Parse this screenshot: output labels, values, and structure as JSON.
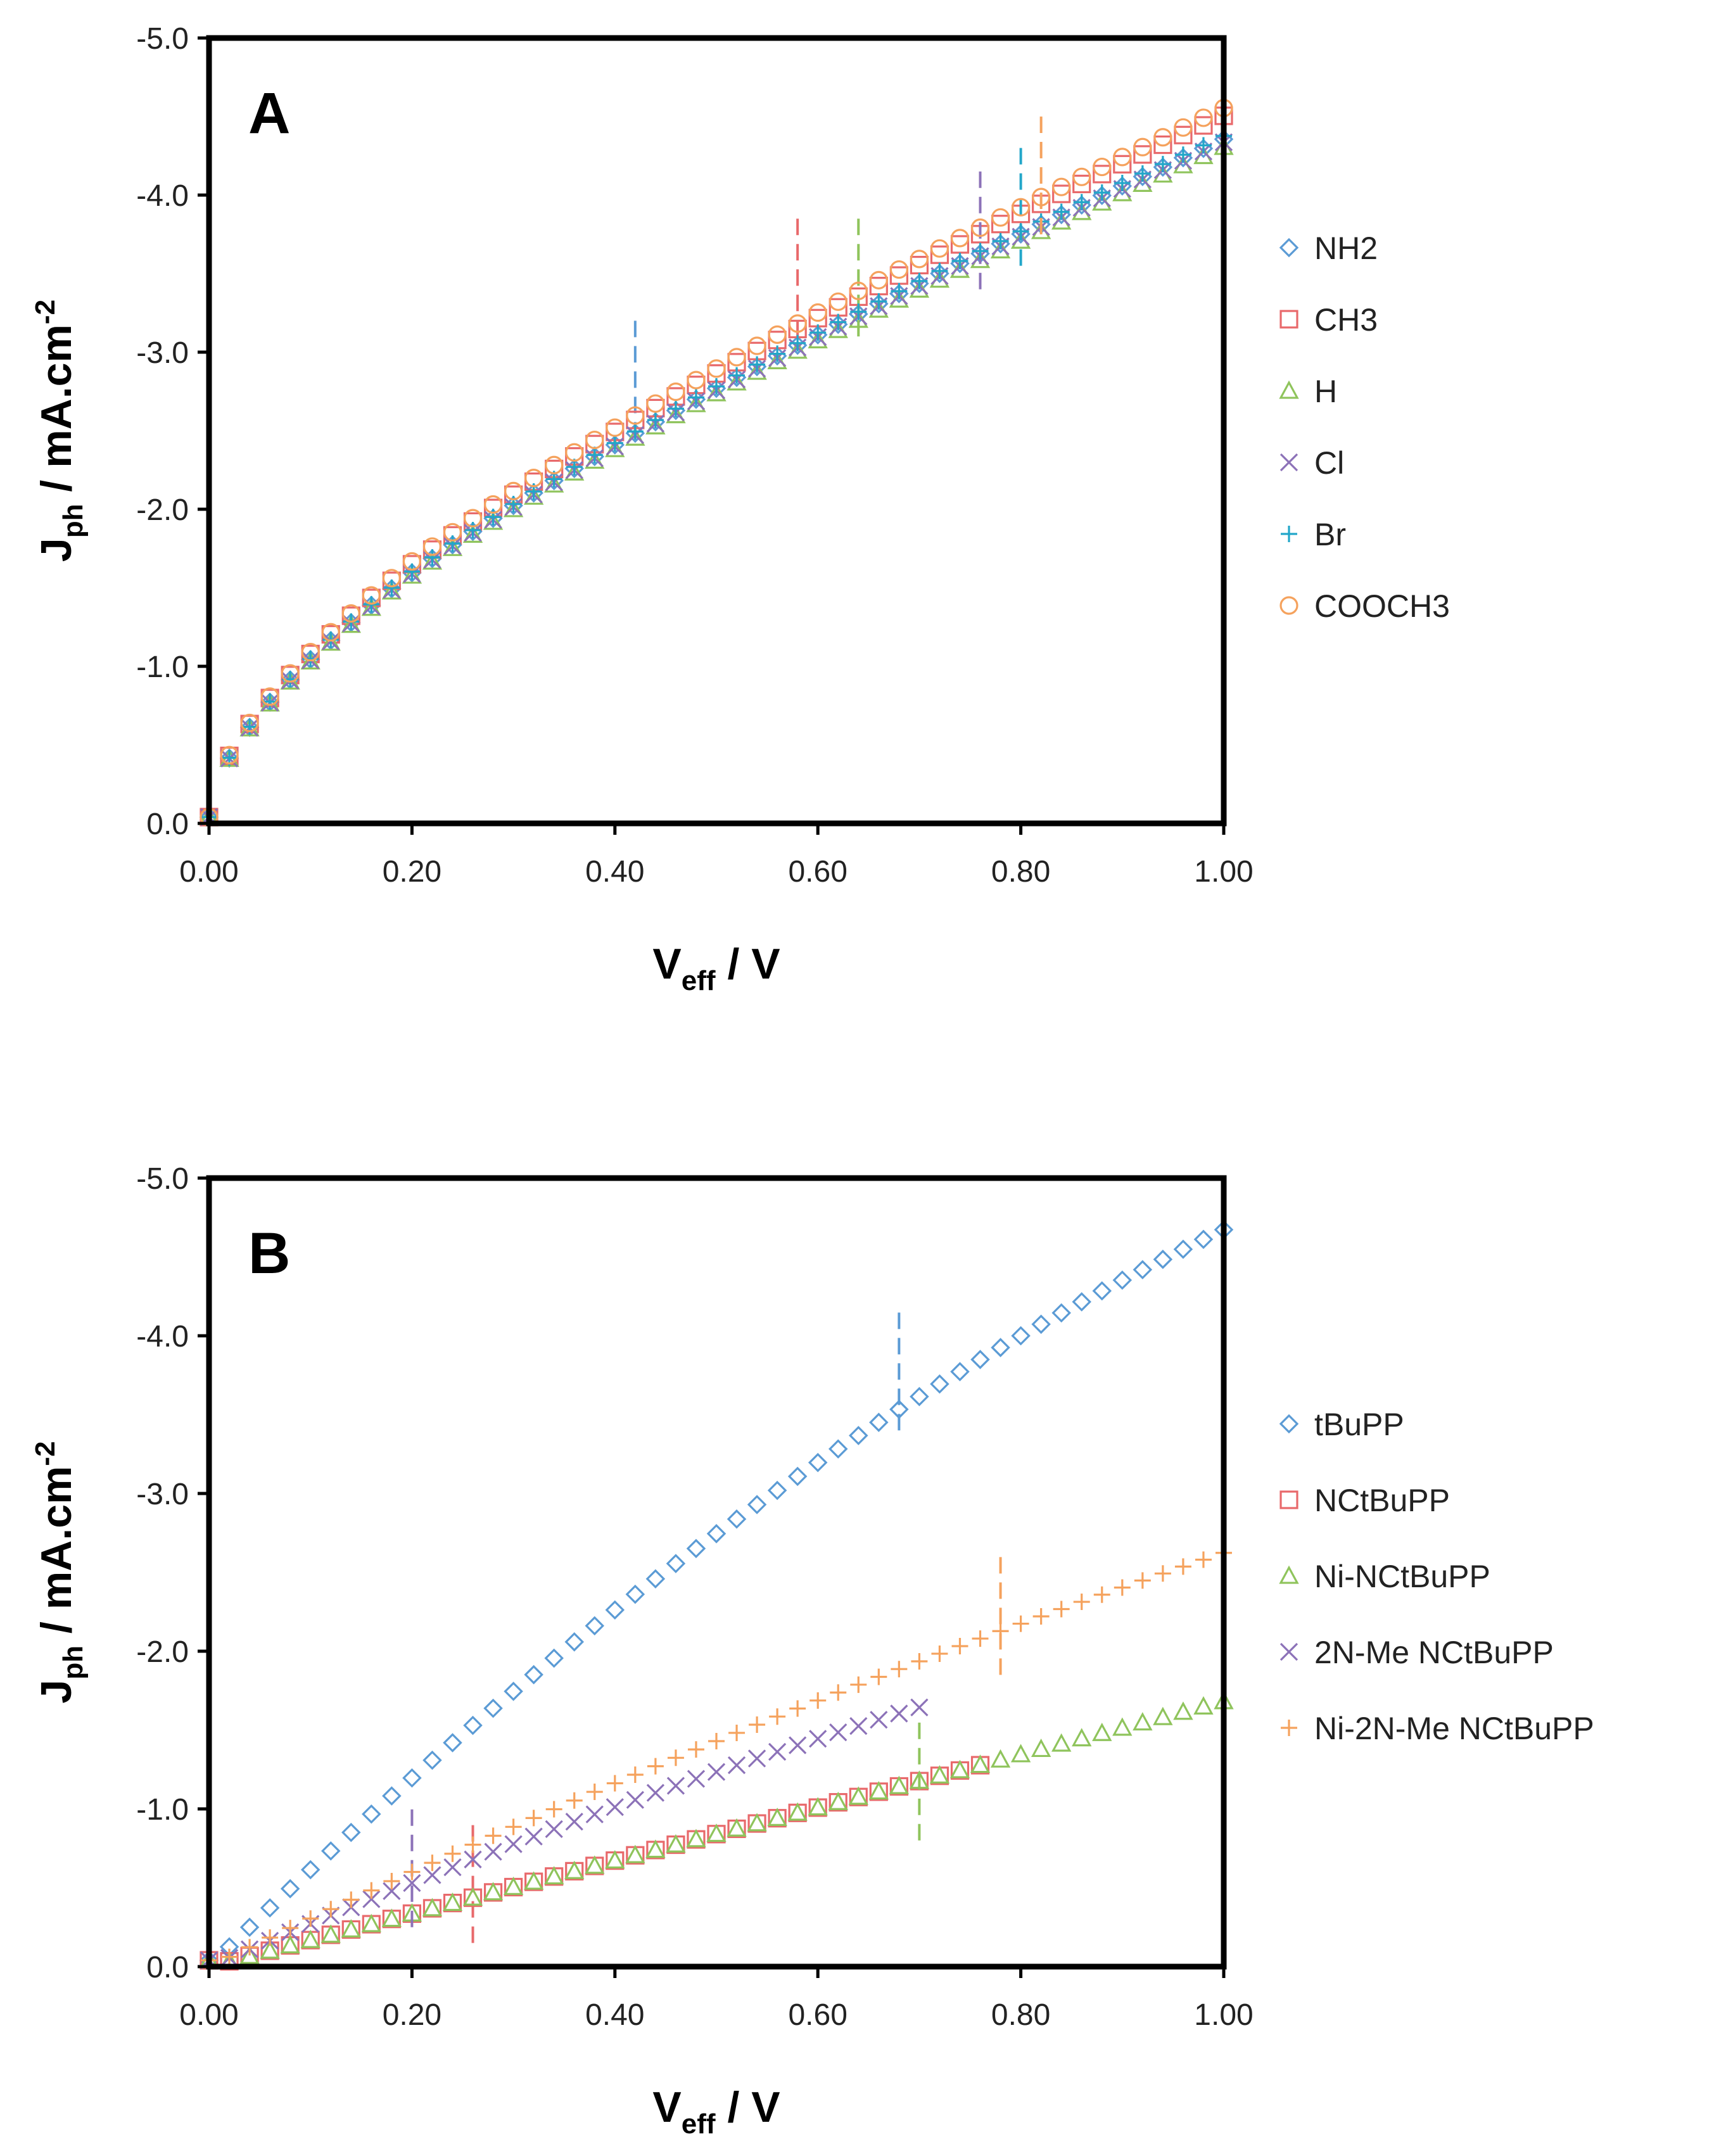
{
  "chart_data": [
    {
      "type": "scatter",
      "panel_label": "A",
      "ylabel_main": "J",
      "ylabel_sub": "ph",
      "ylabel_rest": " / mA.cm",
      "ylabel_sup": "-2",
      "xlabel_main": "V",
      "xlabel_sub": "eff",
      "xlabel_rest": " / V",
      "xlim": [
        0,
        1.0
      ],
      "ylim": [
        0,
        -5.0
      ],
      "x_ticks": [
        0,
        0.2,
        0.4,
        0.6,
        0.8,
        1.0
      ],
      "x_tick_labels": [
        "0.00",
        "0.20",
        "0.40",
        "0.60",
        "0.80",
        "1.00"
      ],
      "y_ticks": [
        0,
        -1,
        -2,
        -3,
        -4,
        -5
      ],
      "y_tick_labels": [
        "0.0",
        "-1.0",
        "-2.0",
        "-3.0",
        "-4.0",
        "-5.0"
      ],
      "legend_position": "right",
      "series": [
        {
          "name": "NH2",
          "marker": "diamond",
          "color": "#5b9bd5",
          "x_max": 1.0,
          "end_value": -4.4,
          "curve": "sqrt",
          "marker_line": 0.42,
          "marker_line_span": [
            -2.45,
            -3.25
          ],
          "points": "every 0.02 V"
        },
        {
          "name": "CH3",
          "marker": "square",
          "color": "#e8696b",
          "x_max": 1.0,
          "end_value": -4.55,
          "curve": "sqrt",
          "marker_line": 0.58,
          "marker_line_span": [
            -3.1,
            -3.9
          ]
        },
        {
          "name": "H",
          "marker": "triangle",
          "color": "#8fc45c",
          "x_max": 1.0,
          "end_value": -4.35,
          "curve": "sqrt",
          "marker_line": 0.64,
          "marker_line_span": [
            -3.1,
            -3.9
          ]
        },
        {
          "name": "Cl",
          "marker": "cross",
          "color": "#8c72b8",
          "x_max": 1.0,
          "end_value": -4.38,
          "curve": "sqrt",
          "marker_line": 0.76,
          "marker_line_span": [
            -3.4,
            -4.2
          ]
        },
        {
          "name": "Br",
          "marker": "plus",
          "color": "#22a6c9",
          "x_max": 1.0,
          "end_value": -4.42,
          "curve": "sqrt",
          "marker_line": 0.8,
          "marker_line_span": [
            -3.55,
            -4.35
          ]
        },
        {
          "name": "COOCH3",
          "marker": "circle",
          "color": "#f5a25d",
          "x_max": 1.0,
          "end_value": -4.6,
          "curve": "sqrt",
          "marker_line": 0.82,
          "marker_line_span": [
            -3.75,
            -4.55
          ]
        }
      ]
    },
    {
      "type": "scatter",
      "panel_label": "B",
      "ylabel_main": "J",
      "ylabel_sub": "ph",
      "ylabel_rest": " / mA.cm",
      "ylabel_sup": "-2",
      "xlabel_main": "V",
      "xlabel_sub": "eff",
      "xlabel_rest": " / V",
      "xlim": [
        0,
        1.0
      ],
      "ylim": [
        0,
        -5.0
      ],
      "x_ticks": [
        0,
        0.2,
        0.4,
        0.6,
        0.8,
        1.0
      ],
      "x_tick_labels": [
        "0.00",
        "0.20",
        "0.40",
        "0.60",
        "0.80",
        "1.00"
      ],
      "y_ticks": [
        0,
        -1,
        -2,
        -3,
        -4,
        -5
      ],
      "y_tick_labels": [
        "0.0",
        "-1.0",
        "-2.0",
        "-3.0",
        "-4.0",
        "-5.0"
      ],
      "legend_position": "right",
      "series": [
        {
          "name": "tBuPP",
          "marker": "diamond",
          "color": "#5b9bd5",
          "x_max": 1.0,
          "end_value": -4.72,
          "curve": "concave",
          "marker_line": 0.68,
          "marker_line_span": [
            -3.4,
            -4.2
          ]
        },
        {
          "name": "NCtBuPP",
          "marker": "square",
          "color": "#e8696b",
          "x_max": 0.76,
          "end_value": -1.29,
          "curve": "linear",
          "marker_line": 0.26,
          "marker_line_span": [
            -0.15,
            -0.95
          ]
        },
        {
          "name": "Ni-NCtBuPP",
          "marker": "triangle",
          "color": "#8fc45c",
          "x_max": 1.0,
          "end_value": -1.7,
          "curve": "linear",
          "marker_line": 0.7,
          "marker_line_span": [
            -0.8,
            -1.6
          ]
        },
        {
          "name": "2N-Me NCtBuPP",
          "marker": "cross",
          "color": "#8c72b8",
          "x_max": 0.7,
          "end_value": -1.66,
          "curve": "mild",
          "marker_line": 0.2,
          "marker_line_span": [
            -0.25,
            -1.05
          ]
        },
        {
          "name": "Ni-2N-Me NCtBuPP",
          "marker": "plus",
          "color": "#f5a25d",
          "x_max": 1.0,
          "end_value": -2.65,
          "curve": "mild",
          "marker_line": 0.78,
          "marker_line_span": [
            -1.85,
            -2.65
          ]
        }
      ]
    }
  ]
}
